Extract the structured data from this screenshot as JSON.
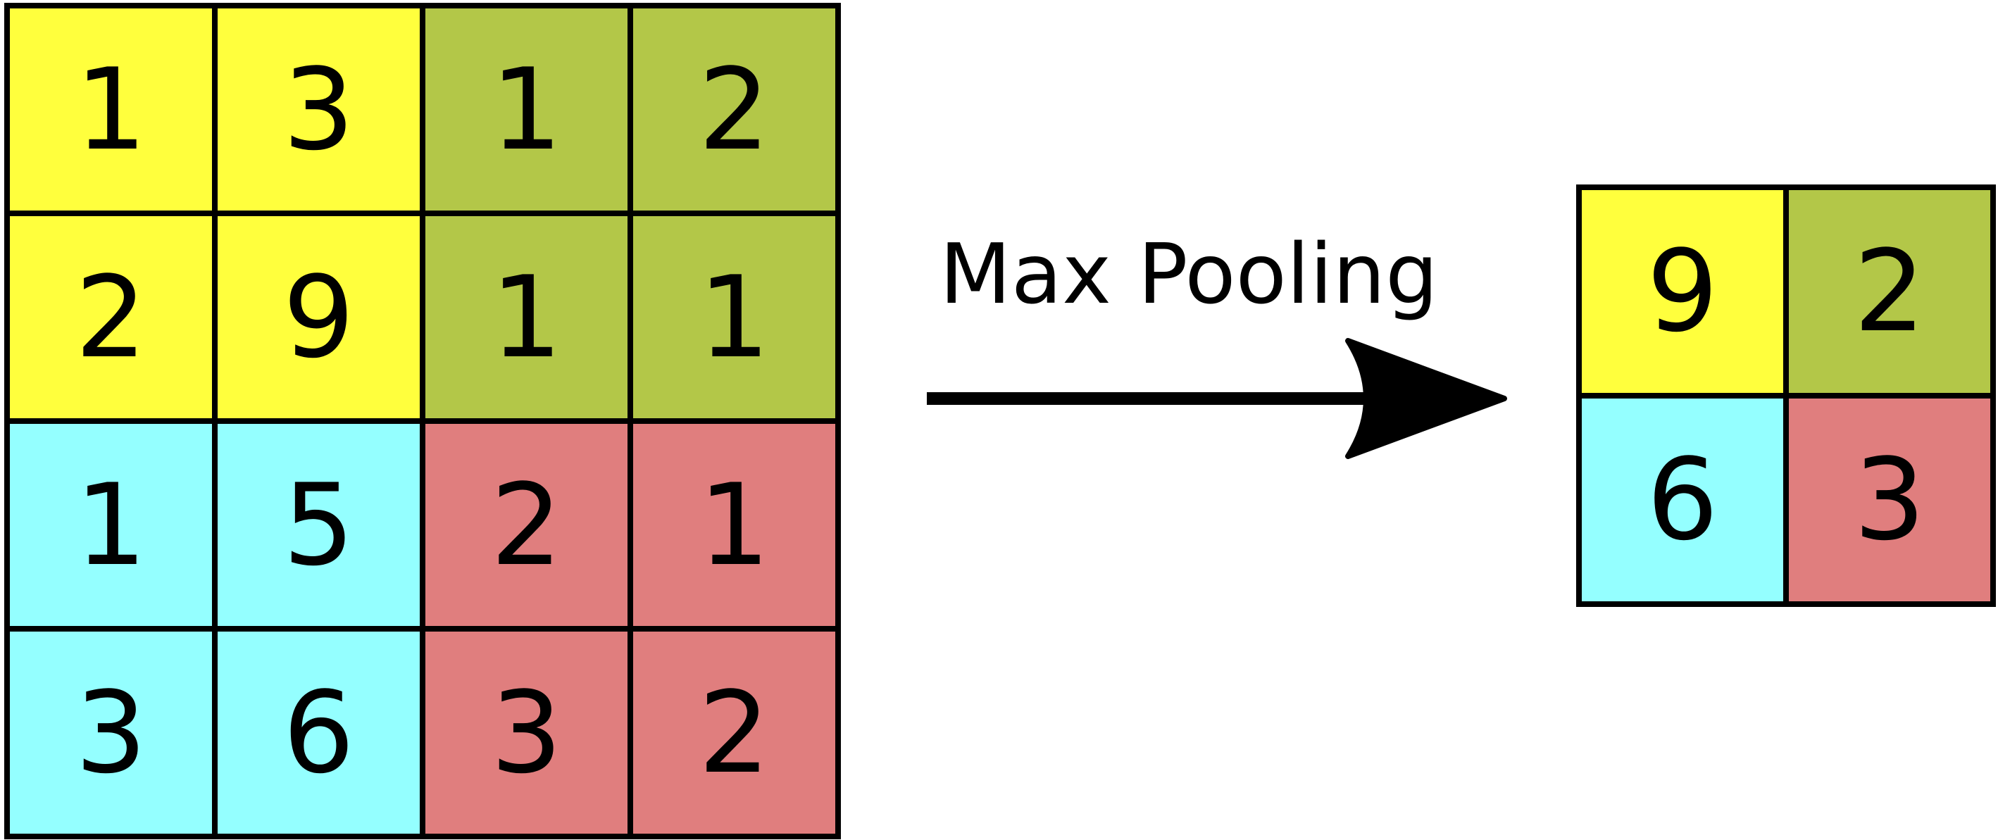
{
  "colors": {
    "quadrant_top_left": "#ffff3d",
    "quadrant_top_right": "#b3c748",
    "quadrant_bottom_left": "#94ffff",
    "quadrant_bottom_right": "#e07e7e",
    "border": "#000000",
    "text": "#000000"
  },
  "operation_label": "Max Pooling",
  "input_matrix": {
    "rows": [
      [
        "1",
        "3",
        "1",
        "2"
      ],
      [
        "2",
        "9",
        "1",
        "1"
      ],
      [
        "1",
        "5",
        "2",
        "1"
      ],
      [
        "3",
        "6",
        "3",
        "2"
      ]
    ]
  },
  "output_matrix": {
    "rows": [
      [
        "9",
        "2"
      ],
      [
        "6",
        "3"
      ]
    ]
  },
  "arrow_icon": "right-arrow-icon"
}
